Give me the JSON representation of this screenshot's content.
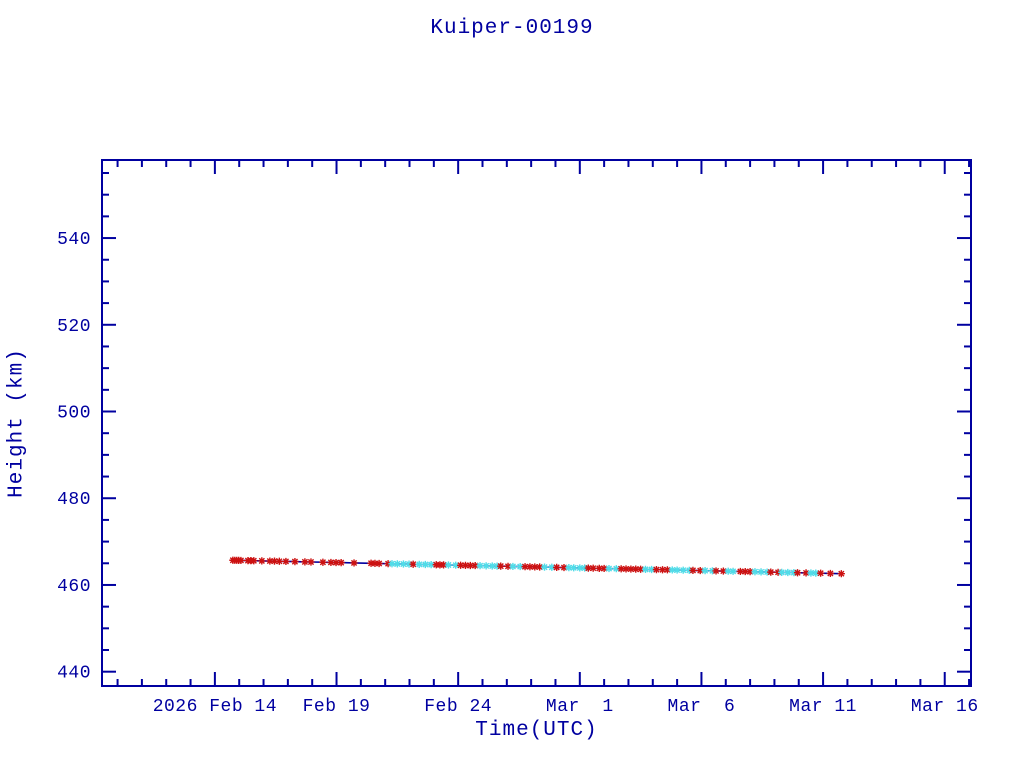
{
  "colors": {
    "axis": "#0000A0",
    "text": "#0000A0",
    "line": "#0000A0",
    "marker_red": "#CC1111",
    "marker_cyan": "#50DCE8",
    "background": "#FFFFFF"
  },
  "chart_data": {
    "type": "line",
    "title": "Kuiper-00199",
    "xlabel": "Time(UTC)",
    "ylabel": "Height (km)",
    "x_units": "days since first major tick (2026 Feb 14 00:00 UTC)",
    "xlim_days": [
      -4.64,
      31.08
    ],
    "ylim": [
      436.7,
      558.0
    ],
    "x_major_ticks": [
      {
        "day": 0,
        "label": "2026 Feb 14"
      },
      {
        "day": 5,
        "label": "Feb 19"
      },
      {
        "day": 10,
        "label": "Feb 24"
      },
      {
        "day": 15,
        "label": "Mar  1"
      },
      {
        "day": 20,
        "label": "Mar  6"
      },
      {
        "day": 25,
        "label": "Mar 11"
      },
      {
        "day": 30,
        "label": "Mar 16"
      }
    ],
    "x_minor_step_days": 1,
    "y_major_ticks": [
      440,
      460,
      480,
      500,
      520,
      540
    ],
    "y_major_step": 20,
    "y_minor_step": 5,
    "grid": false,
    "legend": null,
    "series_note": "single height track; connecting line is navy; markers are asterisks colored r=red or c=cyan",
    "points": [
      [
        0.74,
        465.7,
        "r"
      ],
      [
        0.82,
        465.69,
        "r"
      ],
      [
        0.9,
        465.68,
        "r"
      ],
      [
        0.98,
        465.67,
        "r"
      ],
      [
        1.07,
        465.66,
        "r"
      ],
      [
        1.36,
        465.62,
        "r"
      ],
      [
        1.48,
        465.61,
        "r"
      ],
      [
        1.6,
        465.59,
        "r"
      ],
      [
        1.93,
        465.55,
        "r"
      ],
      [
        2.26,
        465.51,
        "r"
      ],
      [
        2.45,
        465.49,
        "r"
      ],
      [
        2.65,
        465.46,
        "r"
      ],
      [
        2.92,
        465.43,
        "r"
      ],
      [
        3.29,
        465.38,
        "r"
      ],
      [
        3.7,
        465.33,
        "r"
      ],
      [
        3.95,
        465.3,
        "r"
      ],
      [
        4.44,
        465.24,
        "r"
      ],
      [
        4.77,
        465.2,
        "r"
      ],
      [
        4.98,
        465.17,
        "r"
      ],
      [
        5.19,
        465.15,
        "r"
      ],
      [
        5.72,
        465.08,
        "r"
      ],
      [
        6.42,
        465.0,
        "r"
      ],
      [
        6.58,
        464.98,
        "r"
      ],
      [
        6.75,
        464.95,
        "r"
      ],
      [
        7.12,
        464.91,
        "r"
      ],
      [
        7.28,
        464.89,
        "c"
      ],
      [
        7.5,
        464.86,
        "c"
      ],
      [
        7.75,
        464.83,
        "c"
      ],
      [
        7.98,
        464.8,
        "c"
      ],
      [
        8.15,
        464.78,
        "r"
      ],
      [
        8.4,
        464.75,
        "c"
      ],
      [
        8.65,
        464.72,
        "c"
      ],
      [
        8.89,
        464.69,
        "c"
      ],
      [
        9.1,
        464.66,
        "r"
      ],
      [
        9.25,
        464.64,
        "r"
      ],
      [
        9.4,
        464.63,
        "r"
      ],
      [
        9.6,
        464.6,
        "c"
      ],
      [
        9.9,
        464.56,
        "c"
      ],
      [
        10.1,
        464.54,
        "r"
      ],
      [
        10.3,
        464.52,
        "r"
      ],
      [
        10.5,
        464.49,
        "r"
      ],
      [
        10.7,
        464.47,
        "r"
      ],
      [
        10.9,
        464.44,
        "c"
      ],
      [
        11.15,
        464.41,
        "c"
      ],
      [
        11.4,
        464.38,
        "c"
      ],
      [
        11.6,
        464.35,
        "c"
      ],
      [
        11.75,
        464.34,
        "r"
      ],
      [
        12.05,
        464.3,
        "r"
      ],
      [
        12.25,
        464.27,
        "c"
      ],
      [
        12.55,
        464.24,
        "c"
      ],
      [
        12.75,
        464.21,
        "r"
      ],
      [
        12.95,
        464.19,
        "r"
      ],
      [
        13.15,
        464.16,
        "r"
      ],
      [
        13.35,
        464.14,
        "r"
      ],
      [
        13.55,
        464.11,
        "c"
      ],
      [
        13.85,
        464.08,
        "c"
      ],
      [
        14.05,
        464.05,
        "r"
      ],
      [
        14.35,
        464.01,
        "r"
      ],
      [
        14.55,
        463.99,
        "c"
      ],
      [
        14.75,
        463.96,
        "c"
      ],
      [
        15.0,
        463.93,
        "c"
      ],
      [
        15.2,
        463.91,
        "c"
      ],
      [
        15.35,
        463.89,
        "r"
      ],
      [
        15.55,
        463.87,
        "r"
      ],
      [
        15.8,
        463.83,
        "r"
      ],
      [
        16.0,
        463.81,
        "r"
      ],
      [
        16.2,
        463.78,
        "c"
      ],
      [
        16.5,
        463.75,
        "c"
      ],
      [
        16.7,
        463.72,
        "r"
      ],
      [
        16.9,
        463.7,
        "r"
      ],
      [
        17.1,
        463.67,
        "r"
      ],
      [
        17.3,
        463.65,
        "r"
      ],
      [
        17.5,
        463.62,
        "r"
      ],
      [
        17.7,
        463.6,
        "c"
      ],
      [
        17.95,
        463.57,
        "c"
      ],
      [
        18.15,
        463.54,
        "r"
      ],
      [
        18.4,
        463.51,
        "r"
      ],
      [
        18.6,
        463.49,
        "r"
      ],
      [
        18.8,
        463.46,
        "c"
      ],
      [
        19.0,
        463.44,
        "c"
      ],
      [
        19.25,
        463.41,
        "c"
      ],
      [
        19.5,
        463.38,
        "c"
      ],
      [
        19.65,
        463.36,
        "r"
      ],
      [
        19.95,
        463.32,
        "r"
      ],
      [
        20.15,
        463.3,
        "c"
      ],
      [
        20.45,
        463.26,
        "c"
      ],
      [
        20.6,
        463.24,
        "r"
      ],
      [
        20.9,
        463.2,
        "r"
      ],
      [
        21.1,
        463.18,
        "c"
      ],
      [
        21.3,
        463.15,
        "c"
      ],
      [
        21.6,
        463.12,
        "r"
      ],
      [
        21.8,
        463.09,
        "r"
      ],
      [
        22.0,
        463.07,
        "r"
      ],
      [
        22.2,
        463.04,
        "c"
      ],
      [
        22.45,
        463.01,
        "c"
      ],
      [
        22.7,
        462.98,
        "c"
      ],
      [
        22.85,
        462.96,
        "r"
      ],
      [
        23.15,
        462.92,
        "r"
      ],
      [
        23.3,
        462.91,
        "c"
      ],
      [
        23.55,
        462.87,
        "c"
      ],
      [
        23.8,
        462.84,
        "c"
      ],
      [
        23.95,
        462.82,
        "r"
      ],
      [
        24.3,
        462.78,
        "r"
      ],
      [
        24.5,
        462.76,
        "c"
      ],
      [
        24.7,
        462.73,
        "c"
      ],
      [
        24.9,
        462.71,
        "r"
      ],
      [
        25.3,
        462.66,
        "r"
      ],
      [
        25.75,
        462.6,
        "r"
      ]
    ]
  }
}
